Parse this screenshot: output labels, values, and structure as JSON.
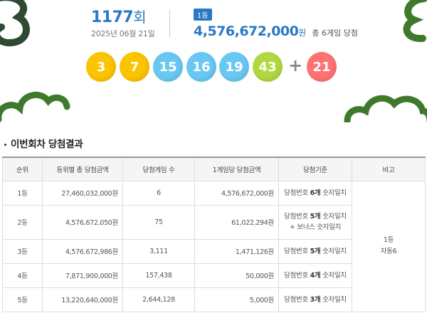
{
  "draw": {
    "round_number": "1177",
    "round_suffix": "회",
    "date": "2025년 06월 21일",
    "rank_badge": "1등",
    "first_prize_amount": "4,576,672,000",
    "first_prize_unit": "원",
    "first_prize_games": "총 6게임 당첨"
  },
  "numbers": [
    {
      "value": "3",
      "color": "#fbc400"
    },
    {
      "value": "7",
      "color": "#fbc400"
    },
    {
      "value": "15",
      "color": "#69c8f2"
    },
    {
      "value": "16",
      "color": "#69c8f2"
    },
    {
      "value": "19",
      "color": "#69c8f2"
    },
    {
      "value": "43",
      "color": "#b0d840"
    }
  ],
  "plus_sign": "+",
  "bonus": {
    "value": "21",
    "color": "#ff7272"
  },
  "section_title": "이번회차 당첨결과",
  "table": {
    "headers": [
      "순위",
      "등위별 총 당첨금액",
      "당첨게임 수",
      "1게임당 당첨금액",
      "당첨기준",
      "비고"
    ],
    "rows": [
      {
        "rank": "1등",
        "total": "27,460,032,000원",
        "games": "6",
        "per_game": "4,576,672,000원",
        "criteria_pre": "당첨번호 ",
        "criteria_bold": "6개",
        "criteria_post": " 숫자일치",
        "criteria_line2": ""
      },
      {
        "rank": "2등",
        "total": "4,576,672,050원",
        "games": "75",
        "per_game": "61,022,294원",
        "criteria_pre": "당첨번호 ",
        "criteria_bold": "5개",
        "criteria_post": " 숫자일치",
        "criteria_line2": "+ 보너스 숫자일치"
      },
      {
        "rank": "3등",
        "total": "4,576,672,986원",
        "games": "3,111",
        "per_game": "1,471,126원",
        "criteria_pre": "당첨번호 ",
        "criteria_bold": "5개",
        "criteria_post": " 숫자일치",
        "criteria_line2": ""
      },
      {
        "rank": "4등",
        "total": "7,871,900,000원",
        "games": "157,438",
        "per_game": "50,000원",
        "criteria_pre": "당첨번호 ",
        "criteria_bold": "4개",
        "criteria_post": " 숫자일치",
        "criteria_line2": ""
      },
      {
        "rank": "5등",
        "total": "13,220,640,000원",
        "games": "2,644,128",
        "per_game": "5,000원",
        "criteria_pre": "당첨번호 ",
        "criteria_bold": "3개",
        "criteria_post": " 숫자일치",
        "criteria_line2": ""
      }
    ],
    "note_line1": "1등",
    "note_line2": "자동6"
  },
  "colors": {
    "accent": "#2a79c4",
    "decoration_green": "#3f7a2c",
    "decoration_dark": "#2f4a33"
  }
}
